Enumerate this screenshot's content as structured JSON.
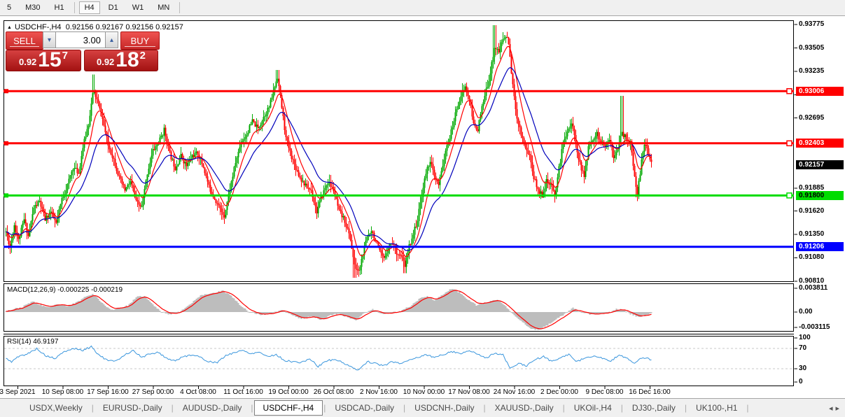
{
  "toolbar": {
    "timeframes": [
      "5",
      "M30",
      "H1",
      "H4",
      "D1",
      "W1",
      "MN"
    ],
    "active": "H4"
  },
  "chart_header": {
    "marker_icon": "▲",
    "symbol_timeframe": "USDCHF-,H4",
    "ohlc": "0.92156 0.92167 0.92156 0.92157"
  },
  "trade_panel": {
    "sell_label": "SELL",
    "buy_label": "BUY",
    "volume": "3.00",
    "down_icon": "▾",
    "up_icon": "▴",
    "sell_price": {
      "small": "0.92",
      "big": "15",
      "sup": "7"
    },
    "buy_price": {
      "small": "0.92",
      "big": "18",
      "sup": "2"
    }
  },
  "price_axis": {
    "ticks": [
      "0.93775",
      "0.93505",
      "0.93235",
      "0.92965",
      "0.92695",
      "0.91885",
      "0.91620",
      "0.91350",
      "0.91080",
      "0.90810"
    ],
    "badges": [
      {
        "value": "0.93006",
        "bg": "#ff0000",
        "fg": "#ffffff"
      },
      {
        "value": "0.92403",
        "bg": "#ff0000",
        "fg": "#ffffff"
      },
      {
        "value": "0.92157",
        "bg": "#000000",
        "fg": "#ffffff"
      },
      {
        "value": "0.91800",
        "bg": "#00dc00",
        "fg": "#000000"
      },
      {
        "value": "0.91206",
        "bg": "#0000ff",
        "fg": "#ffffff"
      }
    ]
  },
  "indicators": {
    "macd": {
      "label": "MACD(12,26,9) -0.000225 -0.000219",
      "axis": [
        "0.003811",
        "0.00",
        "-0.003115"
      ]
    },
    "rsi": {
      "label": "RSI(14) 46.9197",
      "axis": [
        "100",
        "70",
        "30",
        "0"
      ]
    }
  },
  "time_axis": {
    "labels": [
      "3 Sep 2021",
      "10 Sep 08:00",
      "17 Sep 16:00",
      "27 Sep 00:00",
      "4 Oct 08:00",
      "11 Oct 16:00",
      "19 Oct 00:00",
      "26 Oct 08:00",
      "2 Nov 16:00",
      "10 Nov 00:00",
      "17 Nov 08:00",
      "24 Nov 16:00",
      "2 Dec 00:00",
      "9 Dec 08:00",
      "16 Dec 16:00"
    ]
  },
  "tabs": {
    "separator": "|",
    "scroll_left_icon": "◂",
    "scroll_right_icon": "▸",
    "items": [
      "USDX,Weekly",
      "EURUSD-,Daily",
      "AUDUSD-,Daily",
      "USDCHF-,H4",
      "USDCAD-,Daily",
      "USDCNH-,Daily",
      "XAUUSD-,Daily",
      "UKOil-,H4",
      "DJ30-,Daily",
      "UK100-,H1"
    ],
    "active": "USDCHF-,H4"
  },
  "chart_data": {
    "type": "candlestick",
    "symbol": "USDCHF-",
    "timeframe": "H4",
    "ylim": [
      0.908,
      0.93825
    ],
    "colors": {
      "bull": "#00a800",
      "bear": "#ff0000",
      "ma_fast": "#ff0000",
      "ma_slow": "#0000bb",
      "macd_hist": "#bdbdbd",
      "macd_signal": "#ff0000",
      "rsi_line": "#3a96dd",
      "level_dash": "#c8c8c8",
      "grid_border": "#000000"
    },
    "hlines": [
      {
        "price": 0.93006,
        "color": "#ff0000",
        "width": 3,
        "handles": true
      },
      {
        "price": 0.92403,
        "color": "#ff0000",
        "width": 3,
        "handles": true
      },
      {
        "price": 0.918,
        "color": "#00dc00",
        "width": 3,
        "handles": true
      },
      {
        "price": 0.91206,
        "color": "#0000ff",
        "width": 3,
        "handles": false
      }
    ],
    "current_price": 0.92157,
    "close_path": [
      [
        8,
        0.9138
      ],
      [
        14,
        0.912
      ],
      [
        20,
        0.9146
      ],
      [
        26,
        0.9128
      ],
      [
        34,
        0.9152
      ],
      [
        40,
        0.9133
      ],
      [
        48,
        0.9166
      ],
      [
        56,
        0.9173
      ],
      [
        64,
        0.9152
      ],
      [
        72,
        0.9161
      ],
      [
        80,
        0.9147
      ],
      [
        88,
        0.9176
      ],
      [
        96,
        0.9192
      ],
      [
        104,
        0.9213
      ],
      [
        112,
        0.9206
      ],
      [
        118,
        0.9236
      ],
      [
        126,
        0.9263
      ],
      [
        133,
        0.9302
      ],
      [
        139,
        0.9288
      ],
      [
        146,
        0.9268
      ],
      [
        154,
        0.9238
      ],
      [
        162,
        0.9222
      ],
      [
        170,
        0.92
      ],
      [
        178,
        0.9186
      ],
      [
        186,
        0.9196
      ],
      [
        194,
        0.9172
      ],
      [
        202,
        0.9166
      ],
      [
        210,
        0.9206
      ],
      [
        218,
        0.9232
      ],
      [
        226,
        0.9241
      ],
      [
        234,
        0.9256
      ],
      [
        242,
        0.9228
      ],
      [
        250,
        0.9212
      ],
      [
        258,
        0.9226
      ],
      [
        266,
        0.9214
      ],
      [
        274,
        0.9226
      ],
      [
        282,
        0.9229
      ],
      [
        290,
        0.9213
      ],
      [
        298,
        0.919
      ],
      [
        306,
        0.9177
      ],
      [
        314,
        0.9164
      ],
      [
        320,
        0.9157
      ],
      [
        328,
        0.9188
      ],
      [
        336,
        0.9218
      ],
      [
        344,
        0.9242
      ],
      [
        352,
        0.9251
      ],
      [
        360,
        0.9266
      ],
      [
        368,
        0.9257
      ],
      [
        376,
        0.9271
      ],
      [
        384,
        0.9282
      ],
      [
        390,
        0.93
      ],
      [
        396,
        0.9318
      ],
      [
        402,
        0.9282
      ],
      [
        408,
        0.9246
      ],
      [
        414,
        0.923
      ],
      [
        420,
        0.9216
      ],
      [
        428,
        0.9201
      ],
      [
        436,
        0.9191
      ],
      [
        444,
        0.9186
      ],
      [
        452,
        0.9161
      ],
      [
        460,
        0.9181
      ],
      [
        468,
        0.9196
      ],
      [
        476,
        0.9186
      ],
      [
        484,
        0.9161
      ],
      [
        492,
        0.9151
      ],
      [
        500,
        0.913
      ],
      [
        506,
        0.9098
      ],
      [
        512,
        0.9092
      ],
      [
        518,
        0.9112
      ],
      [
        524,
        0.9132
      ],
      [
        530,
        0.9141
      ],
      [
        536,
        0.9127
      ],
      [
        542,
        0.9114
      ],
      [
        548,
        0.9106
      ],
      [
        554,
        0.9121
      ],
      [
        560,
        0.9126
      ],
      [
        566,
        0.9115
      ],
      [
        572,
        0.911
      ],
      [
        578,
        0.9099
      ],
      [
        584,
        0.9121
      ],
      [
        590,
        0.9136
      ],
      [
        596,
        0.9152
      ],
      [
        602,
        0.9181
      ],
      [
        608,
        0.9206
      ],
      [
        614,
        0.9221
      ],
      [
        620,
        0.9201
      ],
      [
        626,
        0.9191
      ],
      [
        632,
        0.9216
      ],
      [
        638,
        0.9236
      ],
      [
        645,
        0.9256
      ],
      [
        652,
        0.9281
      ],
      [
        658,
        0.9296
      ],
      [
        664,
        0.9306
      ],
      [
        670,
        0.9291
      ],
      [
        676,
        0.9262
      ],
      [
        682,
        0.9257
      ],
      [
        688,
        0.9281
      ],
      [
        694,
        0.9301
      ],
      [
        700,
        0.9322
      ],
      [
        706,
        0.9352
      ],
      [
        712,
        0.9346
      ],
      [
        718,
        0.9361
      ],
      [
        724,
        0.9364
      ],
      [
        728,
        0.9341
      ],
      [
        733,
        0.9298
      ],
      [
        738,
        0.9271
      ],
      [
        744,
        0.9251
      ],
      [
        750,
        0.9236
      ],
      [
        756,
        0.9226
      ],
      [
        762,
        0.9201
      ],
      [
        768,
        0.9186
      ],
      [
        774,
        0.9181
      ],
      [
        780,
        0.9196
      ],
      [
        786,
        0.9191
      ],
      [
        792,
        0.9181
      ],
      [
        798,
        0.9211
      ],
      [
        804,
        0.9241
      ],
      [
        810,
        0.9256
      ],
      [
        816,
        0.9263
      ],
      [
        822,
        0.9241
      ],
      [
        828,
        0.9216
      ],
      [
        834,
        0.9201
      ],
      [
        840,
        0.9236
      ],
      [
        846,
        0.9246
      ],
      [
        852,
        0.9251
      ],
      [
        858,
        0.9241
      ],
      [
        864,
        0.9236
      ],
      [
        870,
        0.9246
      ],
      [
        876,
        0.9226
      ],
      [
        882,
        0.9236
      ],
      [
        888,
        0.9252
      ],
      [
        894,
        0.9246
      ],
      [
        900,
        0.9241
      ],
      [
        906,
        0.9201
      ],
      [
        910,
        0.9183
      ],
      [
        914,
        0.9206
      ],
      [
        918,
        0.9231
      ],
      [
        922,
        0.9241
      ],
      [
        926,
        0.9226
      ],
      [
        930,
        0.9216
      ]
    ],
    "spikes": [
      {
        "x": 133,
        "high": 0.932
      },
      {
        "x": 396,
        "high": 0.9325
      },
      {
        "x": 706,
        "high": 0.9377
      },
      {
        "x": 888,
        "high": 0.9295
      },
      {
        "x": 506,
        "low": 0.9085
      },
      {
        "x": 512,
        "low": 0.9088
      },
      {
        "x": 578,
        "low": 0.909
      },
      {
        "x": 318,
        "low": 0.9152
      },
      {
        "x": 910,
        "low": 0.9178
      }
    ],
    "macd": {
      "ylim": [
        -0.00314,
        0.00459
      ],
      "path": [
        [
          8,
          0.0002
        ],
        [
          20,
          0.0005
        ],
        [
          32,
          0.0008
        ],
        [
          45,
          0.0017
        ],
        [
          58,
          0.0011
        ],
        [
          70,
          0.0007
        ],
        [
          82,
          0.0013
        ],
        [
          95,
          0.0009
        ],
        [
          110,
          0.0016
        ],
        [
          125,
          0.0027
        ],
        [
          133,
          0.0029
        ],
        [
          145,
          0.0015
        ],
        [
          158,
          0.0003
        ],
        [
          170,
          0.0007
        ],
        [
          182,
          0.001
        ],
        [
          195,
          0.0024
        ],
        [
          205,
          0.0026
        ],
        [
          218,
          0.0012
        ],
        [
          228,
          0.0002
        ],
        [
          240,
          -0.0003
        ],
        [
          252,
          -0.0002
        ],
        [
          268,
          0.001
        ],
        [
          285,
          0.0026
        ],
        [
          300,
          0.003
        ],
        [
          318,
          0.0034
        ],
        [
          332,
          0.0024
        ],
        [
          345,
          0.0008
        ],
        [
          358,
          -0.0001
        ],
        [
          372,
          -0.0004
        ],
        [
          388,
          -0.0002
        ],
        [
          402,
          0.0004
        ],
        [
          415,
          -0.0004
        ],
        [
          430,
          -0.0011
        ],
        [
          445,
          -0.0007
        ],
        [
          458,
          -0.0012
        ],
        [
          470,
          -0.0006
        ],
        [
          482,
          -0.0003
        ],
        [
          495,
          -0.0008
        ],
        [
          508,
          -0.0013
        ],
        [
          520,
          -0.0002
        ],
        [
          532,
          0.0005
        ],
        [
          545,
          -0.0003
        ],
        [
          558,
          -0.0001
        ],
        [
          570,
          0.0001
        ],
        [
          585,
          0.0009
        ],
        [
          600,
          0.0022
        ],
        [
          610,
          0.0026
        ],
        [
          620,
          0.0019
        ],
        [
          632,
          0.0028
        ],
        [
          645,
          0.0038
        ],
        [
          658,
          0.003
        ],
        [
          670,
          0.0018
        ],
        [
          680,
          0.0011
        ],
        [
          695,
          0.0016
        ],
        [
          710,
          0.002
        ],
        [
          722,
          0.0009
        ],
        [
          732,
          -0.0003
        ],
        [
          745,
          -0.0016
        ],
        [
          758,
          -0.0026
        ],
        [
          768,
          -0.0029
        ],
        [
          780,
          -0.0022
        ],
        [
          795,
          -0.0011
        ],
        [
          808,
          -0.0002
        ],
        [
          818,
          0.0006
        ],
        [
          830,
          0.0
        ],
        [
          842,
          -0.0004
        ],
        [
          855,
          -0.0003
        ],
        [
          868,
          -0.0001
        ],
        [
          880,
          0.0005
        ],
        [
          892,
          0.0003
        ],
        [
          902,
          -0.0004
        ],
        [
          912,
          -0.0008
        ],
        [
          922,
          -0.0004
        ],
        [
          930,
          -0.0002
        ]
      ]
    },
    "rsi": {
      "levels": [
        70,
        30
      ],
      "path": [
        [
          8,
          50
        ],
        [
          16,
          44
        ],
        [
          26,
          54
        ],
        [
          40,
          60
        ],
        [
          52,
          70
        ],
        [
          64,
          56
        ],
        [
          78,
          50
        ],
        [
          92,
          64
        ],
        [
          106,
          70
        ],
        [
          118,
          66
        ],
        [
          130,
          74
        ],
        [
          140,
          58
        ],
        [
          152,
          47
        ],
        [
          164,
          44
        ],
        [
          178,
          58
        ],
        [
          190,
          66
        ],
        [
          202,
          52
        ],
        [
          214,
          60
        ],
        [
          226,
          62
        ],
        [
          238,
          50
        ],
        [
          250,
          46
        ],
        [
          262,
          54
        ],
        [
          274,
          58
        ],
        [
          286,
          52
        ],
        [
          298,
          44
        ],
        [
          310,
          42
        ],
        [
          322,
          56
        ],
        [
          334,
          62
        ],
        [
          346,
          66
        ],
        [
          358,
          60
        ],
        [
          370,
          63
        ],
        [
          382,
          54
        ],
        [
          394,
          58
        ],
        [
          406,
          46
        ],
        [
          418,
          44
        ],
        [
          430,
          42
        ],
        [
          442,
          50
        ],
        [
          454,
          34
        ],
        [
          466,
          46
        ],
        [
          478,
          48
        ],
        [
          490,
          42
        ],
        [
          502,
          32
        ],
        [
          512,
          28
        ],
        [
          524,
          44
        ],
        [
          536,
          40
        ],
        [
          548,
          36
        ],
        [
          560,
          44
        ],
        [
          572,
          40
        ],
        [
          584,
          48
        ],
        [
          596,
          52
        ],
        [
          608,
          58
        ],
        [
          620,
          52
        ],
        [
          632,
          58
        ],
        [
          645,
          64
        ],
        [
          658,
          60
        ],
        [
          670,
          66
        ],
        [
          682,
          58
        ],
        [
          694,
          52
        ],
        [
          706,
          60
        ],
        [
          718,
          58
        ],
        [
          728,
          30
        ],
        [
          740,
          40
        ],
        [
          752,
          36
        ],
        [
          764,
          48
        ],
        [
          776,
          54
        ],
        [
          788,
          44
        ],
        [
          800,
          52
        ],
        [
          812,
          58
        ],
        [
          824,
          44
        ],
        [
          836,
          52
        ],
        [
          848,
          56
        ],
        [
          860,
          50
        ],
        [
          872,
          44
        ],
        [
          884,
          58
        ],
        [
          896,
          50
        ],
        [
          906,
          40
        ],
        [
          916,
          52
        ],
        [
          924,
          50
        ],
        [
          930,
          47
        ]
      ]
    }
  }
}
